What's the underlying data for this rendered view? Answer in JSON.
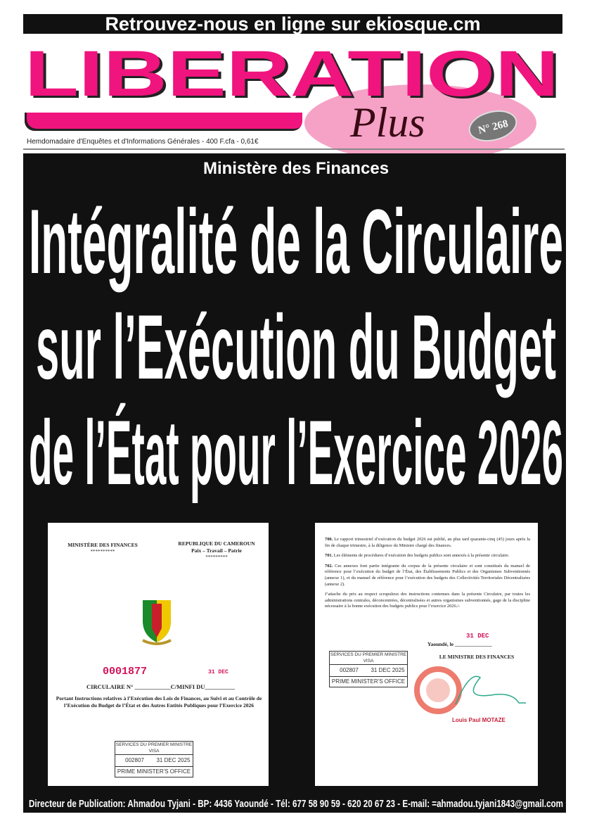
{
  "banner": {
    "text": "Retrouvez-nous en ligne sur ekiosque.cm"
  },
  "masthead": {
    "logo_word": "LIBERATION",
    "logo_plus": "Plus",
    "issue_number": "N° 268",
    "tagline": "Hemdomadaire d'Enquêtes et d'Informations Générales - 400 F.cfa - 0,61€",
    "brand_color": "#f0147e"
  },
  "article": {
    "kicker": "Ministère des Finances",
    "headline_lines": [
      "Intégralité de la Circulaire",
      "sur l’Exécution du Budget",
      "de l’État pour l’Exercice 2026"
    ]
  },
  "document_left": {
    "ministry": "MINISTÈRE DES FINANCES",
    "ministry_stars": "**********",
    "republic": "REPUBLIQUE DU CAMEROUN",
    "motto": "Paix – Travail – Patrie",
    "republic_stars": "*********",
    "stamp_number": "0001877",
    "date_stamp": "31 DEC",
    "circular_prefix": "CIRCULAIRE N°",
    "circular_suffix": "C/MINFI DU",
    "title": "Portant Instructions relatives à l’Exécution des Lois de Finances, au Suivi et au Contrôle de l’Exécution du Budget de l’État et des Autres Entités Publiques pour l’Exercice 2026",
    "visa": {
      "services": "SERVICES DU PREMIER MINISTRE",
      "visa": "VISA",
      "number": "002807",
      "date": "31 DEC 2025",
      "office": "PRIME MINISTER'S OFFICE"
    }
  },
  "document_right": {
    "paragraphs": [
      {
        "num": "700.",
        "text": "Le rapport trimestriel d’exécution du budget 2026 est publié, au plus tard quarante-cinq (45) jours après la fin de chaque trimestre, à la diligence du Ministre chargé des finances."
      },
      {
        "num": "701.",
        "text": "Les éléments de procédures d’exécution des budgets publics sont annexés à la présente circulaire."
      },
      {
        "num": "702.",
        "text": "Ces annexes font partie intégrante du corpus de la présente circulaire et sont constitués du manuel de référence pour l’exécution du budget de l’État, des Établissements Publics et des Organismes Subventionnés (annexe 1), et du manuel de référence pour l’exécution des budgets des Collectivités Territoriales Décentralisées (annexe 2)."
      },
      {
        "num": "",
        "text": "J’attache du prix au respect scrupuleux des instructions contenues dans la présente Circulaire, par toutes les administrations centrales, déconcentrées, décentralisées et autres organismes subventionnés, gage de la discipline nécessaire à la bonne exécution des budgets publics pour l’exercice 2026./-"
      }
    ],
    "place": "Yaoundé, le",
    "date_stamp": "31 DEC",
    "signatory_title": "LE MINISTRE DES FINANCES",
    "signatory_name": "Louis Paul MOTAZE",
    "visa": {
      "services": "SERVICES DU PREMIER MINISTRE",
      "visa": "VISA",
      "number": "002807",
      "date": "31 DEC 2025",
      "office": "PRIME MINISTER'S OFFICE"
    }
  },
  "footer": {
    "text": "Directeur de Publication: Ahmadou Tyjani - BP: 4436 Yaoundé - Tél: 677 58 90 59 - 620 20 67 23 - E-mail: =ahmadou.tyjani1843@gmail.com"
  }
}
